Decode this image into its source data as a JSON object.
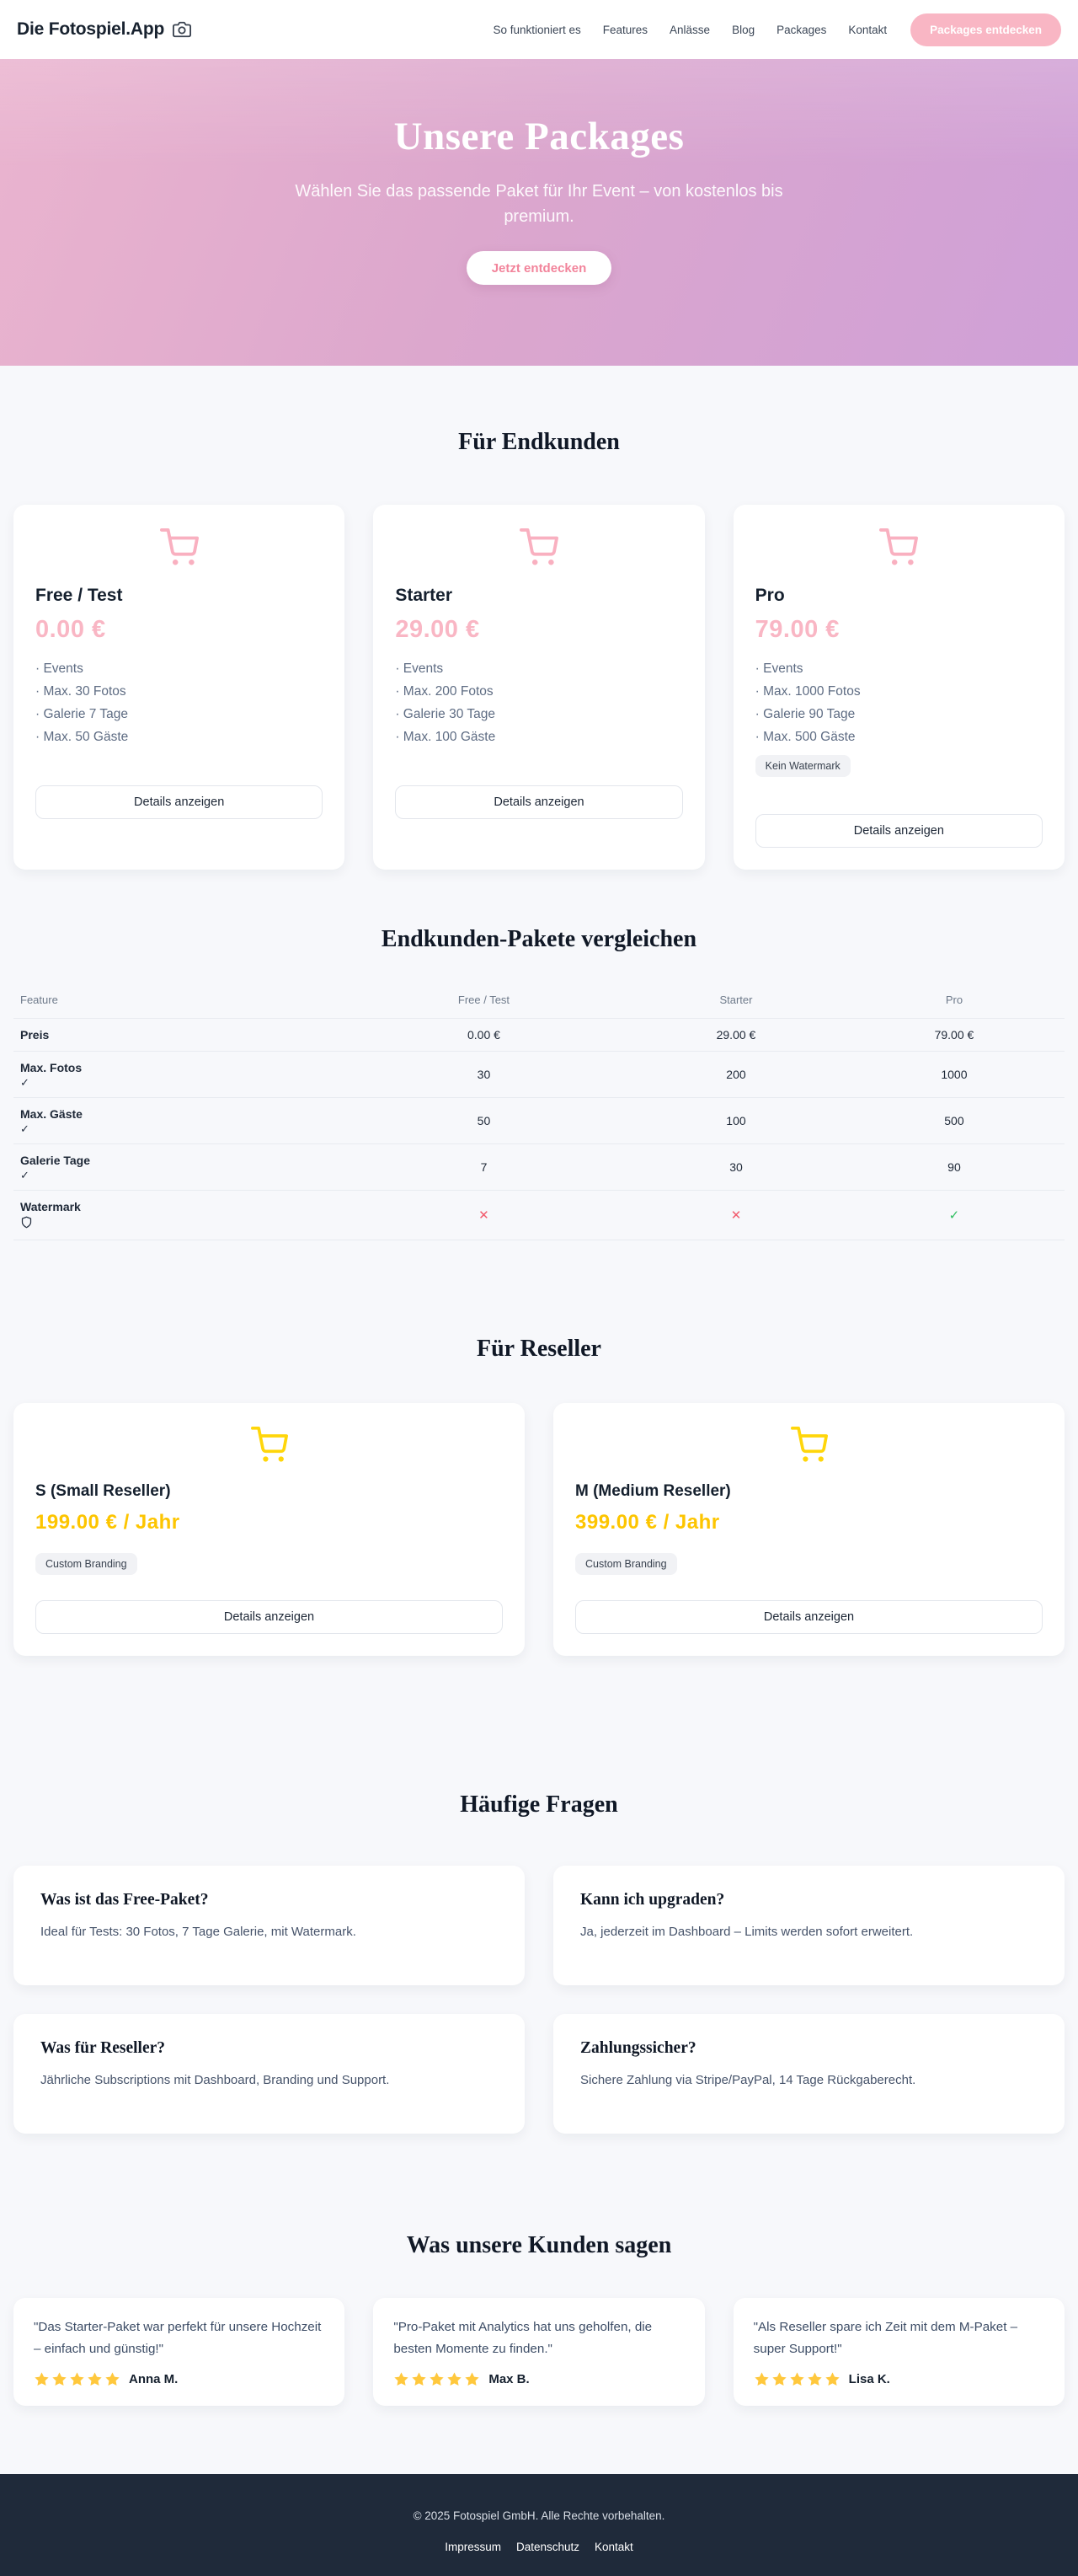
{
  "header": {
    "logo": "Die Fotospiel.App",
    "nav": [
      "So funktioniert es",
      "Features",
      "Anlässe",
      "Blog",
      "Packages",
      "Kontakt"
    ],
    "cta": "Packages entdecken"
  },
  "hero": {
    "title": "Unsere Packages",
    "subtitle": "Wählen Sie das passende Paket für Ihr Event – von kostenlos bis premium.",
    "cta": "Jetzt entdecken"
  },
  "endkunden": {
    "heading": "Für Endkunden",
    "details_label": "Details anzeigen",
    "cards": [
      {
        "name": "Free / Test",
        "price": "0.00 €",
        "features": [
          "Events",
          "Max. 30 Fotos",
          "Galerie 7 Tage",
          "Max. 50 Gäste"
        ],
        "badge": null
      },
      {
        "name": "Starter",
        "price": "29.00 €",
        "features": [
          "Events",
          "Max. 200 Fotos",
          "Galerie 30 Tage",
          "Max. 100 Gäste"
        ],
        "badge": null
      },
      {
        "name": "Pro",
        "price": "79.00 €",
        "features": [
          "Events",
          "Max. 1000 Fotos",
          "Galerie 90 Tage",
          "Max. 500 Gäste"
        ],
        "badge": "Kein Watermark"
      }
    ]
  },
  "compare": {
    "heading": "Endkunden-Pakete vergleichen",
    "columns": [
      "Feature",
      "Free / Test",
      "Starter",
      "Pro"
    ],
    "rows": [
      {
        "label": "Preis",
        "icon": null,
        "cells": [
          {
            "text": "0.00 €"
          },
          {
            "text": "29.00 €"
          },
          {
            "text": "79.00 €"
          }
        ]
      },
      {
        "label": "Max. Fotos",
        "icon": "check",
        "cells": [
          {
            "text": "30"
          },
          {
            "text": "200"
          },
          {
            "text": "1000"
          }
        ]
      },
      {
        "label": "Max. Gäste",
        "icon": "check",
        "cells": [
          {
            "text": "50"
          },
          {
            "text": "100"
          },
          {
            "text": "500"
          }
        ]
      },
      {
        "label": "Galerie Tage",
        "icon": "check",
        "cells": [
          {
            "text": "7"
          },
          {
            "text": "30"
          },
          {
            "text": "90"
          }
        ]
      },
      {
        "label": "Watermark",
        "icon": "shield",
        "cells": [
          {
            "mark": "no"
          },
          {
            "mark": "no"
          },
          {
            "mark": "yes"
          }
        ]
      }
    ]
  },
  "reseller": {
    "heading": "Für Reseller",
    "details_label": "Details anzeigen",
    "cards": [
      {
        "name": "S (Small Reseller)",
        "price": "199.00 € / Jahr",
        "badge": "Custom Branding"
      },
      {
        "name": "M (Medium Reseller)",
        "price": "399.00 € / Jahr",
        "badge": "Custom Branding"
      }
    ]
  },
  "faq": {
    "heading": "Häufige Fragen",
    "items": [
      {
        "q": "Was ist das Free-Paket?",
        "a": "Ideal für Tests: 30 Fotos, 7 Tage Galerie, mit Watermark."
      },
      {
        "q": "Kann ich upgraden?",
        "a": "Ja, jederzeit im Dashboard – Limits werden sofort erweitert."
      },
      {
        "q": "Was für Reseller?",
        "a": "Jährliche Subscriptions mit Dashboard, Branding und Support."
      },
      {
        "q": "Zahlungssicher?",
        "a": "Sichere Zahlung via Stripe/PayPal, 14 Tage Rückgaberecht."
      }
    ]
  },
  "testimonials": {
    "heading": "Was unsere Kunden sagen",
    "items": [
      {
        "quote": "\"Das Starter-Paket war perfekt für unsere Hochzeit – einfach und günstig!\"",
        "stars": 5,
        "name": "Anna M."
      },
      {
        "quote": "\"Pro-Paket mit Analytics hat uns geholfen, die besten Momente zu finden.\"",
        "stars": 5,
        "name": "Max B."
      },
      {
        "quote": "\"Als Reseller spare ich Zeit mit dem M-Paket – super Support!\"",
        "stars": 5,
        "name": "Lisa K."
      }
    ]
  },
  "footer": {
    "copyright": "© 2025 Fotospiel GmbH. Alle Rechte vorbehalten.",
    "links": [
      "Impressum",
      "Datenschutz",
      "Kontakt"
    ]
  },
  "colors": {
    "accent_pink": "#f9b6c4",
    "pink_icon": "#f9b0c0",
    "hero_cta_text": "#f2849b",
    "gold_icon": "#ffd60a",
    "gold_text": "#fdc500",
    "star_gold": "#ffc83d",
    "footer_bg": "#1f2a3a",
    "mark_no": "#f25c6e",
    "mark_yes": "#2fbe60"
  }
}
